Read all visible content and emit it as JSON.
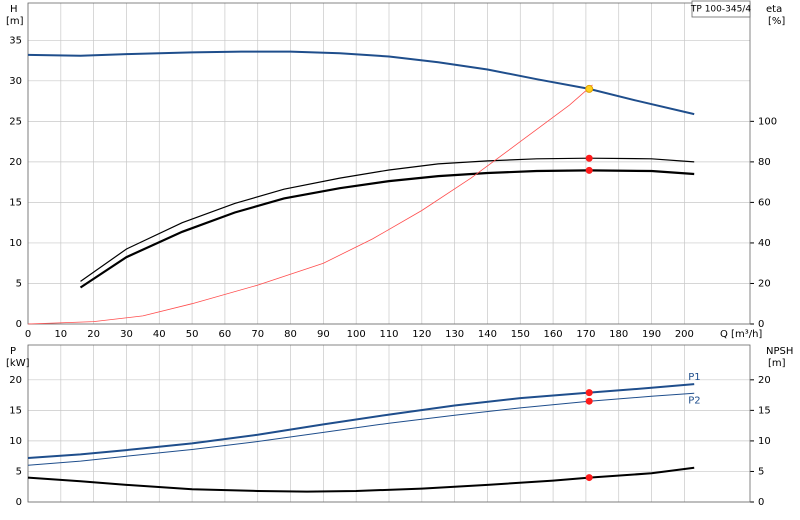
{
  "chart_data": [
    {
      "type": "line",
      "title": "TP 100-345/4",
      "xlabel": "Q [m³/h]",
      "ylabel": "H",
      "yunit": "[m]",
      "y2label": "eta",
      "y2unit": "[%]",
      "xlim": [
        0,
        220
      ],
      "xticks": [
        0,
        10,
        20,
        30,
        40,
        50,
        60,
        70,
        80,
        90,
        100,
        110,
        120,
        130,
        140,
        150,
        160,
        170,
        180,
        190,
        200
      ],
      "ylim": [
        0,
        39.6
      ],
      "yticks": [
        0,
        5,
        10,
        15,
        20,
        25,
        30,
        35
      ],
      "y2lim": [
        0,
        158.4
      ],
      "y2ticks": [
        0,
        20,
        40,
        60,
        80,
        100
      ],
      "grid": true,
      "series": [
        {
          "color": "#1f4e8c",
          "width": 2,
          "x": [
            0,
            16,
            30,
            50,
            65,
            80,
            95,
            110,
            125,
            140,
            155,
            171,
            185,
            203
          ],
          "values": [
            33.2,
            33.1,
            33.3,
            33.5,
            33.6,
            33.6,
            33.4,
            33.0,
            32.3,
            31.4,
            30.2,
            29.0,
            27.6,
            25.9
          ]
        },
        {
          "color": "#000000",
          "width": 1.2,
          "axis": "y2",
          "x": [
            16,
            30,
            47,
            63,
            78,
            95,
            110,
            125,
            140,
            155,
            171,
            190,
            203
          ],
          "values": [
            21,
            37,
            50,
            59.5,
            66.5,
            72,
            76,
            79,
            80.5,
            81.5,
            81.8,
            81.5,
            80
          ]
        },
        {
          "color": "#000000",
          "width": 2.2,
          "axis": "y2",
          "x": [
            16,
            30,
            47,
            63,
            78,
            95,
            110,
            125,
            140,
            155,
            171,
            190,
            203
          ],
          "values": [
            18,
            33,
            45.5,
            55,
            62,
            67,
            70.5,
            73,
            74.5,
            75.5,
            75.8,
            75.5,
            74
          ]
        },
        {
          "color": "#ff4d4d",
          "width": 0.8,
          "x": [
            0,
            20,
            35,
            50,
            70,
            90,
            105,
            120,
            135,
            150,
            165,
            172
          ],
          "values": [
            0,
            0.3,
            1,
            2.5,
            4.8,
            7.5,
            10.5,
            14,
            18,
            22.5,
            27,
            29.5
          ]
        },
        {
          "marker": true,
          "color": "#ff1a1a",
          "axis": "y2",
          "x": [
            171,
            171
          ],
          "values": [
            81.8,
            75.8
          ]
        },
        {
          "marker": true,
          "color": "#ffd21f",
          "x": [
            171
          ],
          "values": [
            29.0
          ]
        }
      ]
    },
    {
      "type": "line",
      "ylabel": "P",
      "yunit": "[kW]",
      "y2label": "NPSH",
      "y2unit": "[m]",
      "xlim": [
        0,
        220
      ],
      "xticks": [
        0,
        10,
        20,
        30,
        40,
        50,
        60,
        70,
        80,
        90,
        100,
        110,
        120,
        130,
        140,
        150,
        160,
        170,
        180,
        190,
        200
      ],
      "xtick_labels": false,
      "ylim": [
        0,
        25.7
      ],
      "yticks": [
        0,
        5,
        10,
        15,
        20
      ],
      "y2lim": [
        0,
        25.7
      ],
      "y2ticks": [
        0,
        5,
        10,
        15,
        20
      ],
      "grid": true,
      "series": [
        {
          "name": "P1",
          "color": "#1f4e8c",
          "width": 2,
          "x": [
            0,
            16,
            30,
            50,
            70,
            90,
            110,
            130,
            150,
            171,
            190,
            203
          ],
          "values": [
            7.2,
            7.8,
            8.5,
            9.6,
            11,
            12.7,
            14.3,
            15.8,
            17,
            17.9,
            18.7,
            19.3
          ]
        },
        {
          "name": "P2",
          "color": "#1f4e8c",
          "width": 1,
          "x": [
            0,
            16,
            30,
            50,
            70,
            90,
            110,
            130,
            150,
            171,
            190,
            203
          ],
          "values": [
            6,
            6.7,
            7.5,
            8.6,
            9.9,
            11.4,
            12.9,
            14.2,
            15.4,
            16.5,
            17.3,
            17.8
          ]
        },
        {
          "color": "#000000",
          "width": 2,
          "axis": "y2",
          "x": [
            0,
            16,
            30,
            50,
            70,
            85,
            100,
            120,
            140,
            160,
            171,
            190,
            203
          ],
          "values": [
            4,
            3.4,
            2.8,
            2.1,
            1.8,
            1.7,
            1.8,
            2.2,
            2.8,
            3.5,
            4,
            4.7,
            5.6
          ]
        },
        {
          "marker": true,
          "color": "#ff1a1a",
          "x": [
            171,
            171
          ],
          "values": [
            17.9,
            16.5
          ]
        },
        {
          "marker": true,
          "color": "#ff1a1a",
          "axis": "y2",
          "x": [
            171
          ],
          "values": [
            4
          ]
        }
      ]
    }
  ]
}
